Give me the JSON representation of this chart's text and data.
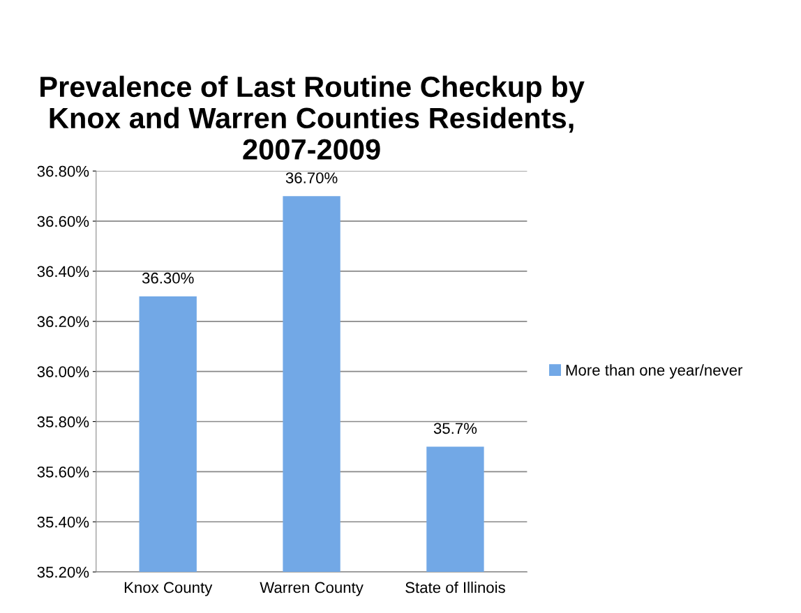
{
  "chart_data": {
    "type": "bar",
    "title": "Prevalence of Last Routine Checkup by\nKnox and Warren Counties Residents,\n2007-2009",
    "categories": [
      "Knox County",
      "Warren County",
      "State of Illinois"
    ],
    "series": [
      {
        "name": "More than one year/never",
        "color": "#72a8e6",
        "values": [
          36.3,
          36.7,
          35.7
        ],
        "value_labels": [
          "36.30%",
          "36.70%",
          "35.7%"
        ]
      }
    ],
    "ylim": [
      35.2,
      36.8
    ],
    "yticks": [
      {
        "value": 35.2,
        "label": "35.20%"
      },
      {
        "value": 35.4,
        "label": "35.40%"
      },
      {
        "value": 35.6,
        "label": "35.60%"
      },
      {
        "value": 35.8,
        "label": "35.80%"
      },
      {
        "value": 36.0,
        "label": "36.00%"
      },
      {
        "value": 36.2,
        "label": "36.20%"
      },
      {
        "value": 36.4,
        "label": "36.40%"
      },
      {
        "value": 36.6,
        "label": "36.60%"
      },
      {
        "value": 36.8,
        "label": "36.80%"
      }
    ],
    "grid": "y",
    "legend": "right"
  }
}
